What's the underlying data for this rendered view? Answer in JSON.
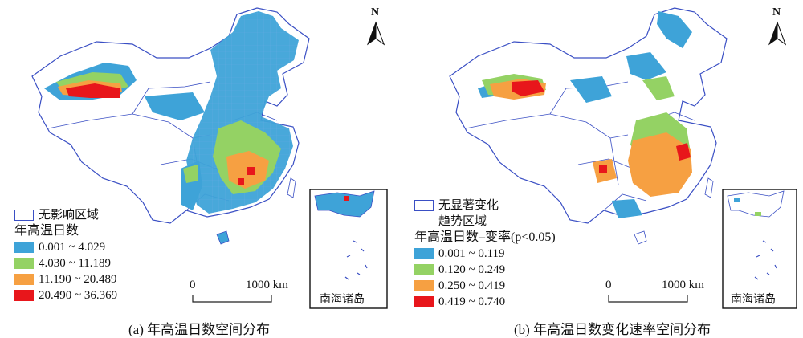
{
  "colors": {
    "class1": "#3ea3d8",
    "class2": "#94d264",
    "class3": "#f6a042",
    "class4": "#e8161b",
    "boundary": "#3a4fc4"
  },
  "panel_a": {
    "legend_boundary_label": "无影响区域",
    "legend_title": "年高温日数",
    "classes": [
      "0.001 ~ 4.029",
      "4.030 ~ 11.189",
      "11.190 ~ 20.489",
      "20.490 ~ 36.369"
    ],
    "north_label": "N",
    "scale_zero": "0",
    "scale_end": "1000 km",
    "inset_label": "南海诸岛",
    "caption": "(a) 年高温日数空间分布"
  },
  "panel_b": {
    "legend_boundary_label_line1": "无显著变化",
    "legend_boundary_label_line2": "趋势区域",
    "legend_title": "年高温日数–变率(p<0.05)",
    "classes": [
      "0.001 ~ 0.119",
      "0.120 ~ 0.249",
      "0.250 ~ 0.419",
      "0.419 ~ 0.740"
    ],
    "north_label": "N",
    "scale_zero": "0",
    "scale_end": "1000 km",
    "inset_label": "南海诸岛",
    "caption": "(b) 年高温日数变化速率空间分布"
  }
}
